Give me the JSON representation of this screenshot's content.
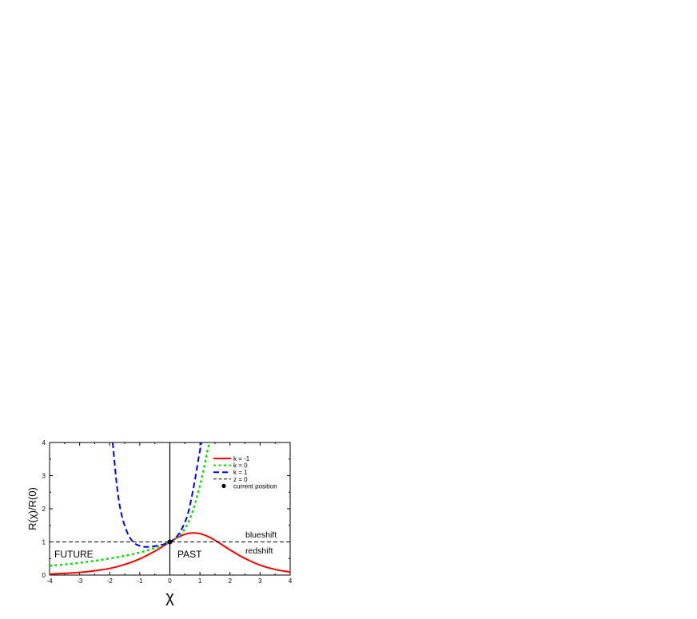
{
  "chart_data": {
    "type": "line",
    "xlabel": "χ",
    "ylabel": "R(χ)/R(0)",
    "xlim": [
      -4,
      4
    ],
    "ylim": [
      0,
      4
    ],
    "x_ticks": [
      "-4",
      "-3",
      "-2",
      "-1",
      "0",
      "1",
      "2",
      "3",
      "4"
    ],
    "y_ticks": [
      "0",
      "1",
      "2",
      "3",
      "4"
    ],
    "series": [
      {
        "name": "k = -1",
        "color": "#ff0000",
        "style": "solid",
        "x": [
          -4,
          -3.5,
          -3,
          -2.5,
          -2,
          -1.5,
          -1,
          -0.5,
          0,
          0.25,
          0.5,
          0.75,
          1,
          1.25,
          1.5,
          2,
          2.5,
          3,
          3.5,
          4
        ],
        "y": [
          0.03,
          0.05,
          0.08,
          0.13,
          0.2,
          0.32,
          0.49,
          0.72,
          1.0,
          1.13,
          1.23,
          1.27,
          1.25,
          1.17,
          1.05,
          0.76,
          0.5,
          0.3,
          0.17,
          0.09
        ]
      },
      {
        "name": "k = 0",
        "color": "#00dd00",
        "style": "dotted",
        "x": [
          -4,
          -3.5,
          -3,
          -2.5,
          -2,
          -1.5,
          -1,
          -0.5,
          0,
          0.25,
          0.5,
          0.75,
          1,
          1.15,
          1.25,
          1.33
        ],
        "y": [
          0.28,
          0.32,
          0.37,
          0.43,
          0.5,
          0.58,
          0.68,
          0.82,
          1.0,
          1.15,
          1.4,
          1.9,
          2.7,
          3.3,
          3.75,
          4.0
        ]
      },
      {
        "name": "k = 1",
        "color": "#0000ee",
        "style": "dashed",
        "x": [
          -1.9,
          -1.75,
          -1.6,
          -1.4,
          -1.2,
          -1.0,
          -0.8,
          -0.6,
          -0.4,
          -0.2,
          0,
          0.2,
          0.4,
          0.6,
          0.8,
          0.95,
          1.05
        ],
        "y": [
          4.0,
          2.6,
          1.8,
          1.25,
          0.98,
          0.88,
          0.85,
          0.86,
          0.89,
          0.93,
          1.0,
          1.13,
          1.4,
          1.85,
          2.7,
          3.5,
          4.0
        ]
      },
      {
        "name": "z = 0",
        "color": "#000000",
        "style": "dashed",
        "x": [
          -4,
          4
        ],
        "y": [
          1,
          1
        ]
      }
    ],
    "current_position": {
      "name": "current position",
      "x": 0,
      "y": 1
    },
    "vertical_line": {
      "x": 0
    },
    "annotations": {
      "future": "FUTURE",
      "past": "PAST",
      "blueshift": "blueshift",
      "redshift": "redshift"
    },
    "legend": {
      "placement": "top-right",
      "entries": [
        {
          "label": "k = -1",
          "color": "#ff0000",
          "style": "solid",
          "marker": "line"
        },
        {
          "label": "k = 0",
          "color": "#00dd00",
          "style": "dotted",
          "marker": "line"
        },
        {
          "label": "k = 1",
          "color": "#0000ee",
          "style": "dashed",
          "marker": "line"
        },
        {
          "label": "z = 0",
          "color": "#000000",
          "style": "dashed",
          "marker": "line"
        },
        {
          "label": "current position",
          "color": "#000000",
          "style": "none",
          "marker": "dot"
        }
      ]
    }
  }
}
